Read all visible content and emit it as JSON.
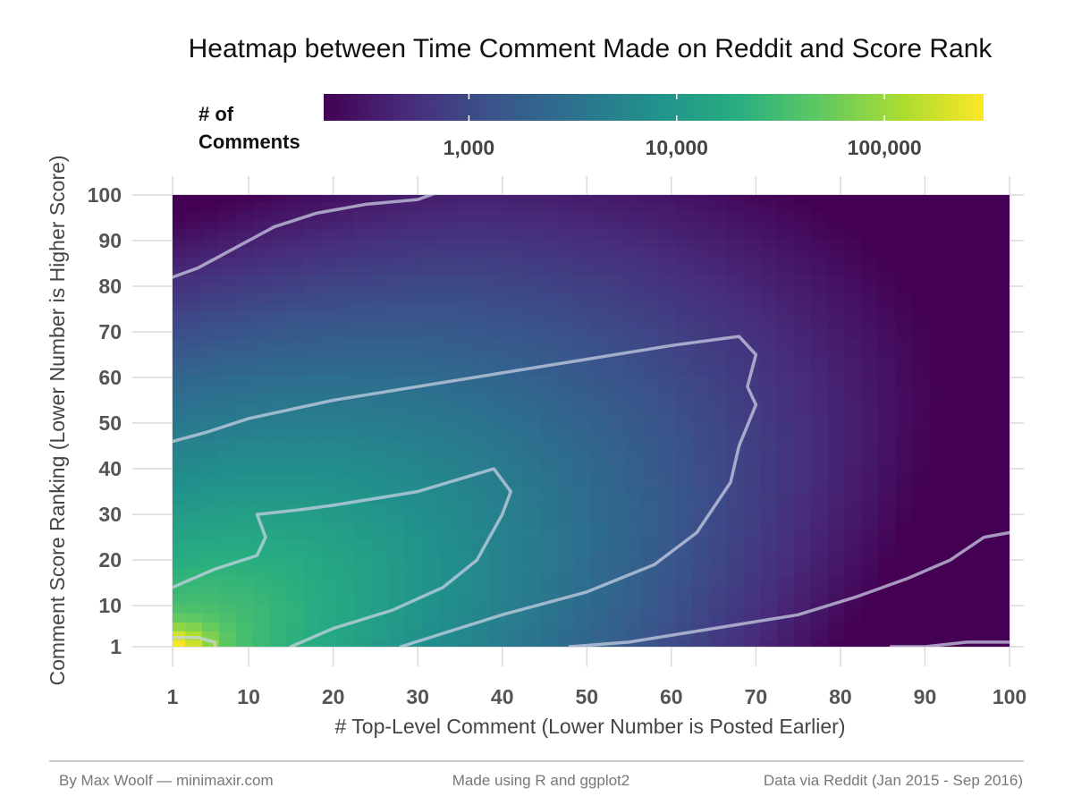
{
  "chart_data": {
    "type": "heatmap",
    "title": "Heatmap between Time Comment Made on Reddit and Score Rank",
    "xlabel": "# Top-Level Comment (Lower Number is Posted Earlier)",
    "ylabel": "Comment Score Ranking (Lower Number is Higher Score)",
    "xlim": [
      1,
      100
    ],
    "ylim": [
      1,
      100
    ],
    "x_ticks": [
      1,
      10,
      20,
      30,
      40,
      50,
      60,
      70,
      80,
      90,
      100
    ],
    "y_ticks": [
      1,
      10,
      20,
      30,
      40,
      50,
      60,
      70,
      80,
      90,
      100
    ],
    "x_tick_labels": [
      "1",
      "10",
      "20",
      "30",
      "40",
      "50",
      "60",
      "70",
      "80",
      "90",
      "100"
    ],
    "y_tick_labels": [
      "1",
      "10",
      "20",
      "30",
      "40",
      "50",
      "60",
      "70",
      "80",
      "90",
      "100"
    ],
    "colorscale": "viridis",
    "color_scale_type": "log",
    "color_range": [
      200,
      300000
    ],
    "legend": {
      "title_line1": "# of",
      "title_line2": "Comments",
      "placement": "top",
      "ticks": [
        1000,
        10000,
        100000
      ],
      "tick_labels": [
        "1,000",
        "10,000",
        "100,000"
      ]
    },
    "grid": true,
    "peak": {
      "x": 1,
      "y": 1
    },
    "contours": [
      {
        "level": "innermost",
        "points": [
          [
            1,
            3
          ],
          [
            4,
            3
          ],
          [
            6,
            2
          ],
          [
            6,
            1
          ]
        ]
      },
      {
        "level": "inner",
        "points": [
          [
            1,
            14
          ],
          [
            6,
            18
          ],
          [
            11,
            21
          ],
          [
            12,
            25
          ],
          [
            11,
            30
          ],
          [
            16,
            31
          ],
          [
            20,
            32
          ],
          [
            30,
            35
          ],
          [
            39,
            40
          ],
          [
            41,
            35
          ],
          [
            40,
            30
          ],
          [
            37,
            20
          ],
          [
            33,
            14
          ],
          [
            27,
            9
          ],
          [
            20,
            5
          ],
          [
            15,
            1
          ]
        ]
      },
      {
        "level": "middle",
        "points": [
          [
            1,
            46
          ],
          [
            5,
            48
          ],
          [
            10,
            51
          ],
          [
            15,
            53
          ],
          [
            20,
            55
          ],
          [
            30,
            58
          ],
          [
            40,
            61
          ],
          [
            50,
            64
          ],
          [
            60,
            67
          ],
          [
            68,
            69
          ],
          [
            70,
            65
          ],
          [
            69,
            58
          ],
          [
            70,
            54
          ],
          [
            68,
            45
          ],
          [
            67,
            37
          ],
          [
            63,
            26
          ],
          [
            58,
            19
          ],
          [
            50,
            13
          ],
          [
            40,
            8
          ],
          [
            28,
            1
          ]
        ]
      },
      {
        "level": "outer-top",
        "points": [
          [
            1,
            82
          ],
          [
            4,
            84
          ],
          [
            7,
            87
          ],
          [
            10,
            90
          ],
          [
            13,
            93
          ],
          [
            18,
            96
          ],
          [
            24,
            98
          ],
          [
            30,
            99
          ],
          [
            33,
            101
          ]
        ]
      },
      {
        "level": "outer-bottom",
        "points": [
          [
            48,
            1
          ],
          [
            55,
            2
          ],
          [
            65,
            5
          ],
          [
            75,
            8
          ],
          [
            82,
            12
          ],
          [
            88,
            16
          ],
          [
            93,
            20
          ],
          [
            97,
            25
          ],
          [
            100,
            26
          ]
        ]
      },
      {
        "level": "outermost-bottom",
        "points": [
          [
            86,
            1
          ],
          [
            90,
            1
          ],
          [
            95,
            2
          ],
          [
            100,
            2
          ]
        ]
      }
    ]
  },
  "footer": {
    "left": "By Max Woolf — minimaxir.com",
    "center": "Made using R and ggplot2",
    "right": "Data via Reddit (Jan 2015 - Sep 2016)"
  }
}
